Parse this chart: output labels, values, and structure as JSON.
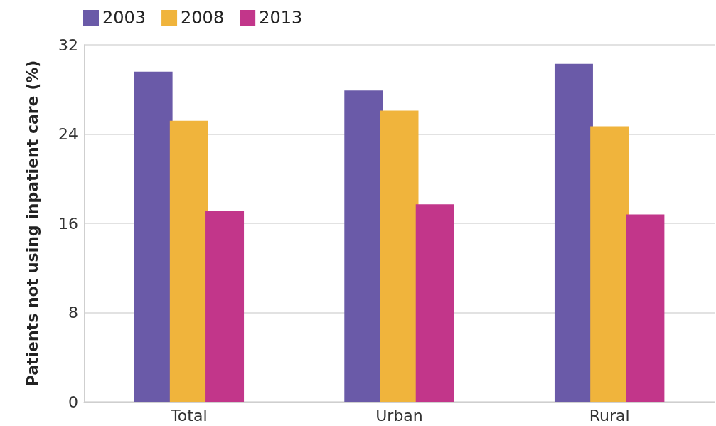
{
  "chart_data": {
    "type": "bar",
    "ylabel": "Patients not using inpatient care (%)",
    "categories": [
      "Total",
      "Urban",
      "Rural"
    ],
    "series": [
      {
        "name": "2003",
        "color": "#6a5aa8",
        "values": [
          29.6,
          27.9,
          30.3
        ]
      },
      {
        "name": "2008",
        "color": "#f0b43c",
        "values": [
          25.2,
          26.1,
          24.7
        ]
      },
      {
        "name": "2013",
        "color": "#c2368a",
        "values": [
          17.1,
          17.7,
          16.8
        ]
      }
    ],
    "ylim": [
      0,
      32
    ],
    "yticks": [
      0,
      8,
      16,
      24,
      32
    ],
    "grid": "y",
    "legend": "top left"
  }
}
